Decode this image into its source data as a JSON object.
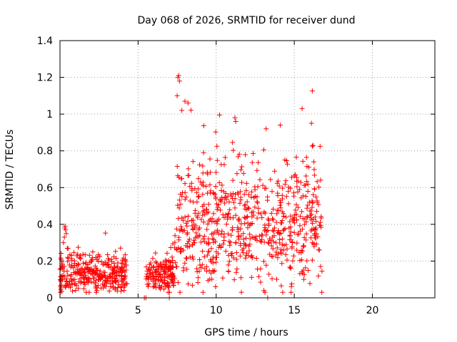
{
  "chart_data": {
    "type": "scatter",
    "title": "Day 068 of 2026, SRMTID for receiver dund",
    "xlabel": "GPS time / hours",
    "ylabel": "SRMTID / TECUs",
    "xlim": [
      0,
      24
    ],
    "ylim": [
      0,
      1.4
    ],
    "xticks": [
      0,
      5,
      10,
      15,
      20
    ],
    "yticks": [
      0,
      0.2,
      0.4,
      0.6,
      0.8,
      1,
      1.2,
      1.4
    ],
    "xtick_labels": [
      "0",
      "5",
      "10",
      "15",
      "20"
    ],
    "ytick_labels": [
      "0",
      "0.2",
      "0.4",
      "0.6",
      "0.8",
      "1",
      "1.2",
      "1.4"
    ],
    "grid": true,
    "marker": "+",
    "color": "#ff0000",
    "segments": [
      {
        "t0": 0.0,
        "t1": 4.3,
        "base": 0.13,
        "spread": 0.05,
        "n": 320
      },
      {
        "t0": 5.5,
        "t1": 7.3,
        "base": 0.12,
        "spread": 0.05,
        "n": 150
      },
      {
        "t0": 7.3,
        "t1": 16.8,
        "base": 0.4,
        "spread": 0.16,
        "n": 700
      }
    ],
    "points": [
      [
        0.1,
        0.07
      ],
      [
        0.15,
        0.18
      ],
      [
        0.22,
        0.3
      ],
      [
        0.28,
        0.33
      ],
      [
        0.3,
        0.38
      ],
      [
        0.33,
        0.39
      ],
      [
        0.36,
        0.37
      ],
      [
        0.4,
        0.35
      ],
      [
        7.5,
        1.1
      ],
      [
        7.55,
        1.2
      ],
      [
        7.6,
        1.21
      ],
      [
        7.65,
        1.18
      ],
      [
        7.8,
        1.02
      ],
      [
        8.0,
        1.07
      ],
      [
        8.2,
        1.06
      ],
      [
        11.2,
        0.98
      ],
      [
        11.25,
        0.96
      ],
      [
        15.5,
        1.03
      ],
      [
        16.1,
        0.95
      ],
      [
        16.2,
        0.83
      ],
      [
        14.1,
        0.94
      ],
      [
        13.2,
        0.92
      ],
      [
        0.5,
        0.22
      ],
      [
        1.3,
        0.23
      ],
      [
        2.1,
        0.25
      ],
      [
        3.3,
        0.21
      ],
      [
        4.1,
        0.04
      ],
      [
        1.0,
        0.04
      ],
      [
        5.4,
        0.0
      ],
      [
        5.5,
        0.0
      ],
      [
        7.0,
        0.0
      ],
      [
        13.3,
        0.0
      ]
    ]
  }
}
